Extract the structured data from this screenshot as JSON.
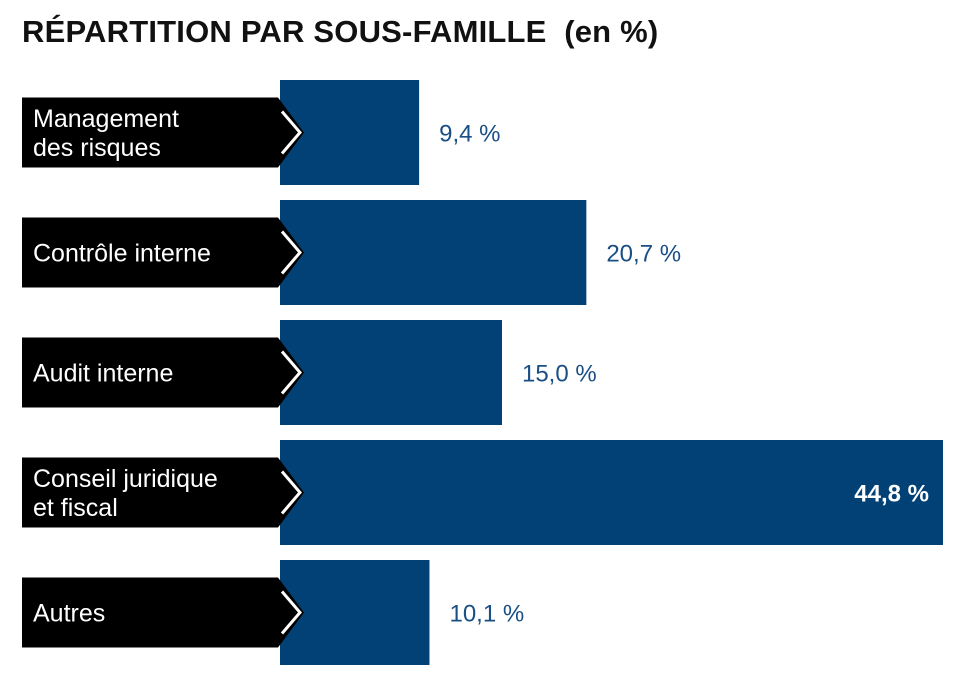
{
  "title": "RÉPARTITION PAR SOUS-FAMILLE  (en %)",
  "colors": {
    "bar": "#014176",
    "label_bg": "#000000",
    "label_text": "#ffffff",
    "value_text": "#1a4f85",
    "value_text_inside": "#ffffff"
  },
  "chart_data": {
    "type": "bar",
    "orientation": "horizontal",
    "title": "RÉPARTITION PAR SOUS-FAMILLE  (en %)",
    "xlabel": "",
    "ylabel": "",
    "categories": [
      [
        "Management",
        "des risques"
      ],
      [
        "Contrôle interne"
      ],
      [
        "Audit interne"
      ],
      [
        "Conseil juridique",
        "et fiscal"
      ],
      [
        "Autres"
      ]
    ],
    "values": [
      9.4,
      20.7,
      15.0,
      44.8,
      10.1
    ],
    "value_labels": [
      "9,4 %",
      "20,7 %",
      "15,0 %",
      "44,8 %",
      "10,1 %"
    ],
    "xlim": [
      0,
      44.8
    ],
    "grid": false,
    "legend": "none"
  }
}
